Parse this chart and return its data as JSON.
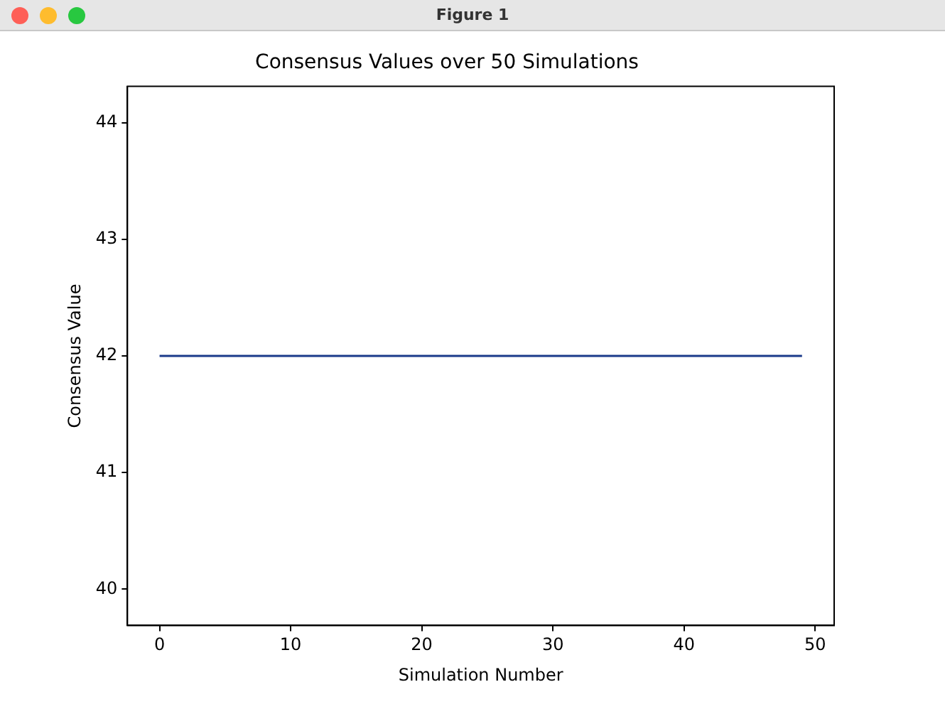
{
  "chart_data": {
    "type": "line",
    "title": "Consensus Values over 50 Simulations",
    "xlabel": "Simulation Number",
    "ylabel": "Consensus Value",
    "annotations": [
      "Figure 1"
    ],
    "x": [
      0,
      49
    ],
    "series": [
      {
        "color": "#1a3a8a",
        "values": [
          42,
          42
        ]
      }
    ],
    "xlim": [
      -2.45,
      51.45
    ],
    "xticks": [
      0,
      10,
      20,
      30,
      40,
      50
    ],
    "ylim": [
      39.69,
      44.31
    ],
    "yticks": [
      40,
      41,
      42,
      43,
      44
    ],
    "grid": false,
    "legend": false,
    "marker": "none",
    "line_style": "solid"
  }
}
